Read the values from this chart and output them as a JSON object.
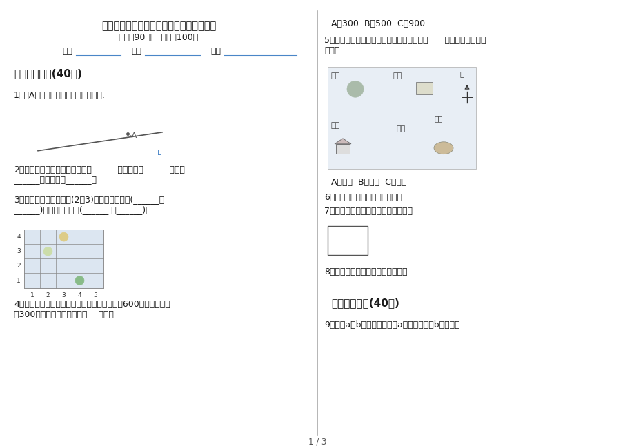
{
  "title": "精选综合复习四年级上学期数学五单元试卷",
  "subtitle": "时间：90分钟  满分：100分",
  "label_class": "班级",
  "label_name": "姓名",
  "label_score": "成绩",
  "section1": "一、基础练习(40分)",
  "q1": "1．过A点分别画直线的垂线和平行线.",
  "q2_text": "2．正方形的特征是：四个角都是______；四条边都______；对边\n______；邻边互相______。",
  "q3_text": "3．如图，苹果的位置为(2，3)，则梨的位置为(______，\n______)，西瓜的位置为(______ ，______)。",
  "q4_text": "4．商店和学校都在广场的正南方，商店离广场600米，学校离广\n场300米，那么学校离商店（    ）米。",
  "q4_choices": "A．300  B．500  C．900",
  "q5_text": "5．如下图，小红正站在沙坑处，她应该向（      ）方向走才能到达\n树林。",
  "q5_choices": "A．东北  B．西南  C．西北",
  "q6_text": "6．长方形的两组邻边相互垂直。",
  "q7_text": "7．用画垂线的方法画出一个长方形。",
  "q8_text": "8．确定行数，我们一般从前往后数",
  "section2": "二、综合练习(40分)",
  "q9_text": "9．如图a与b互相垂直，就说a是垂线，或者b是垂线。",
  "page_num": "1 / 3",
  "bg_color": "#ffffff",
  "text_color": "#1a1a1a",
  "line_color": "#333333",
  "underline_color": "#4a86c8",
  "grid_bg": "#dce6f1",
  "divider_color": "#999999"
}
